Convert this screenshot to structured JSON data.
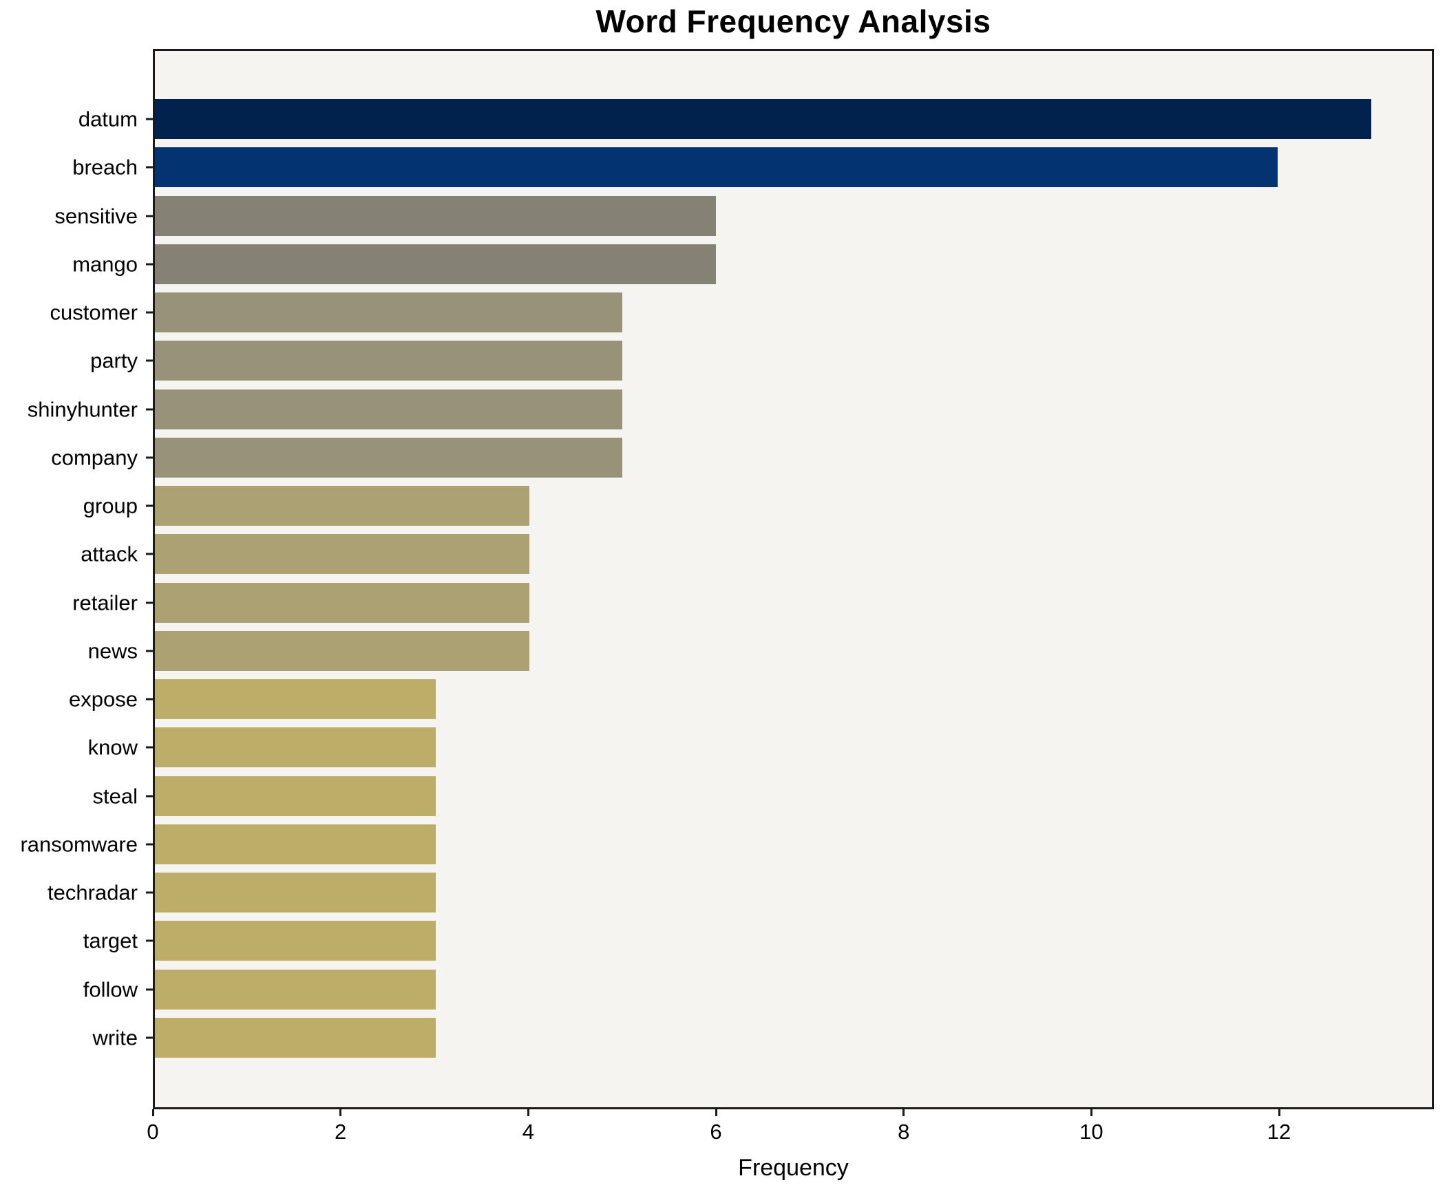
{
  "figure": {
    "background": "#ffffff",
    "plot_background": "#f5f4f1",
    "spine_color": "#1a1a1a"
  },
  "chart_data": {
    "type": "bar",
    "orientation": "horizontal",
    "title": "Word Frequency Analysis",
    "xlabel": "Frequency",
    "ylabel": "",
    "categories": [
      "datum",
      "breach",
      "sensitive",
      "mango",
      "customer",
      "party",
      "shinyhunter",
      "company",
      "group",
      "attack",
      "retailer",
      "news",
      "expose",
      "know",
      "steal",
      "ransomware",
      "techradar",
      "target",
      "follow",
      "write"
    ],
    "values": [
      13,
      12,
      6,
      6,
      5,
      5,
      5,
      5,
      4,
      4,
      4,
      4,
      3,
      3,
      3,
      3,
      3,
      3,
      3,
      3
    ],
    "bar_colors": [
      "#01224d",
      "#043371",
      "#858174",
      "#858174",
      "#989378",
      "#989378",
      "#989378",
      "#989378",
      "#aba173",
      "#aba173",
      "#aba173",
      "#aba173",
      "#bcad68",
      "#bcad68",
      "#bcad68",
      "#bcad68",
      "#bcad68",
      "#bcad68",
      "#bcad68",
      "#bcad68"
    ],
    "xlim": [
      0,
      13.65
    ],
    "xticks": [
      0,
      2,
      4,
      6,
      8,
      10,
      12
    ],
    "grid": false,
    "legend": null,
    "colormap": "cividis"
  }
}
